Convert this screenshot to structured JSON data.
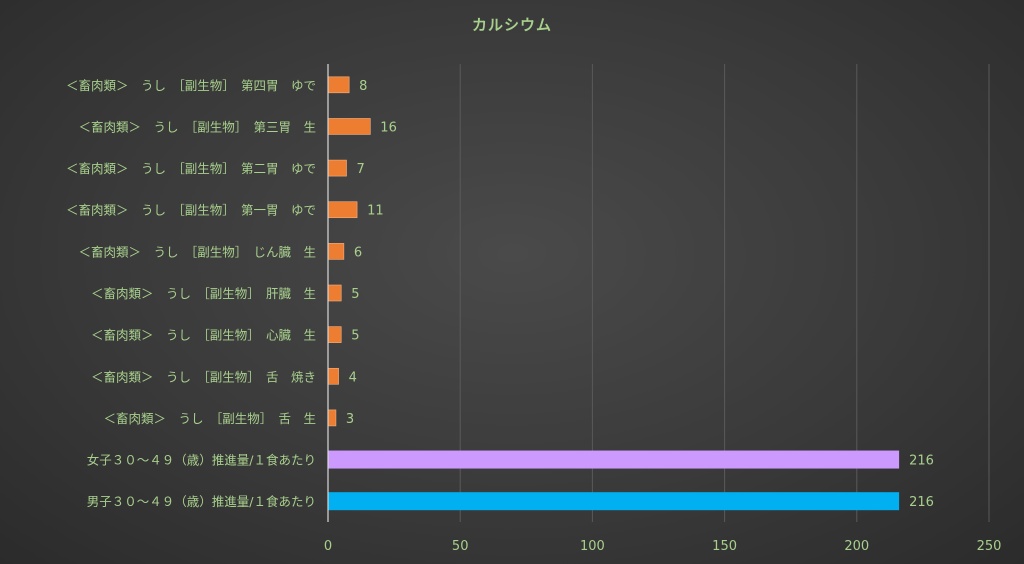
{
  "chart_data": {
    "type": "bar",
    "orientation": "horizontal",
    "title": "カルシウム",
    "xlim": [
      0,
      250
    ],
    "x_ticks": [
      0,
      50,
      100,
      150,
      200,
      250
    ],
    "grid": true,
    "categories": [
      "<畜肉類> うし [副生物] 第四胃 ゆで",
      "<畜肉類> うし [副生物] 第三胃 生",
      "<畜肉類> うし [副生物] 第二胃 ゆで",
      "<畜肉類> うし [副生物] 第一胃 ゆで",
      "<畜肉類> うし [副生物] じん臓 生",
      "<畜肉類> うし [副生物] 肝臓 生",
      "<畜肉類> うし [副生物] 心臓 生",
      "<畜肉類> うし [副生物] 舌 焼き",
      "<畜肉類> うし [副生物] 舌 生",
      "女子30～49（歳）推進量/1食あたり",
      "男子30～49（歳）推進量/1食あたり"
    ],
    "category_labels": [
      "＜畜肉類＞　うし　［副生物］　第四胃　ゆで",
      "＜畜肉類＞　うし　［副生物］　第三胃　生",
      "＜畜肉類＞　うし　［副生物］　第二胃　ゆで",
      "＜畜肉類＞　うし　［副生物］　第一胃　ゆで",
      "＜畜肉類＞　うし　［副生物］　じん臓　生",
      "＜畜肉類＞　うし　［副生物］　肝臓　生",
      "＜畜肉類＞　うし　［副生物］　心臓　生",
      "＜畜肉類＞　うし　［副生物］　舌　焼き",
      "＜畜肉類＞　うし　［副生物］　舌　生",
      "女子３０～４９（歳）推進量/１食あたり",
      "男子３０～４９（歳）推進量/１食あたり"
    ],
    "values": [
      8,
      16,
      7,
      11,
      6,
      5,
      5,
      4,
      3,
      216,
      216
    ],
    "colors": [
      "#ed7d31",
      "#ed7d31",
      "#ed7d31",
      "#ed7d31",
      "#ed7d31",
      "#ed7d31",
      "#ed7d31",
      "#ed7d31",
      "#ed7d31",
      "#cc99ff",
      "#00b0f0"
    ]
  },
  "theme": {
    "label_color": "#a8d08d",
    "axis_text_color": "#a8d08d",
    "grid_color": "#5a5a5a",
    "axis_color": "#d9d9d9"
  }
}
